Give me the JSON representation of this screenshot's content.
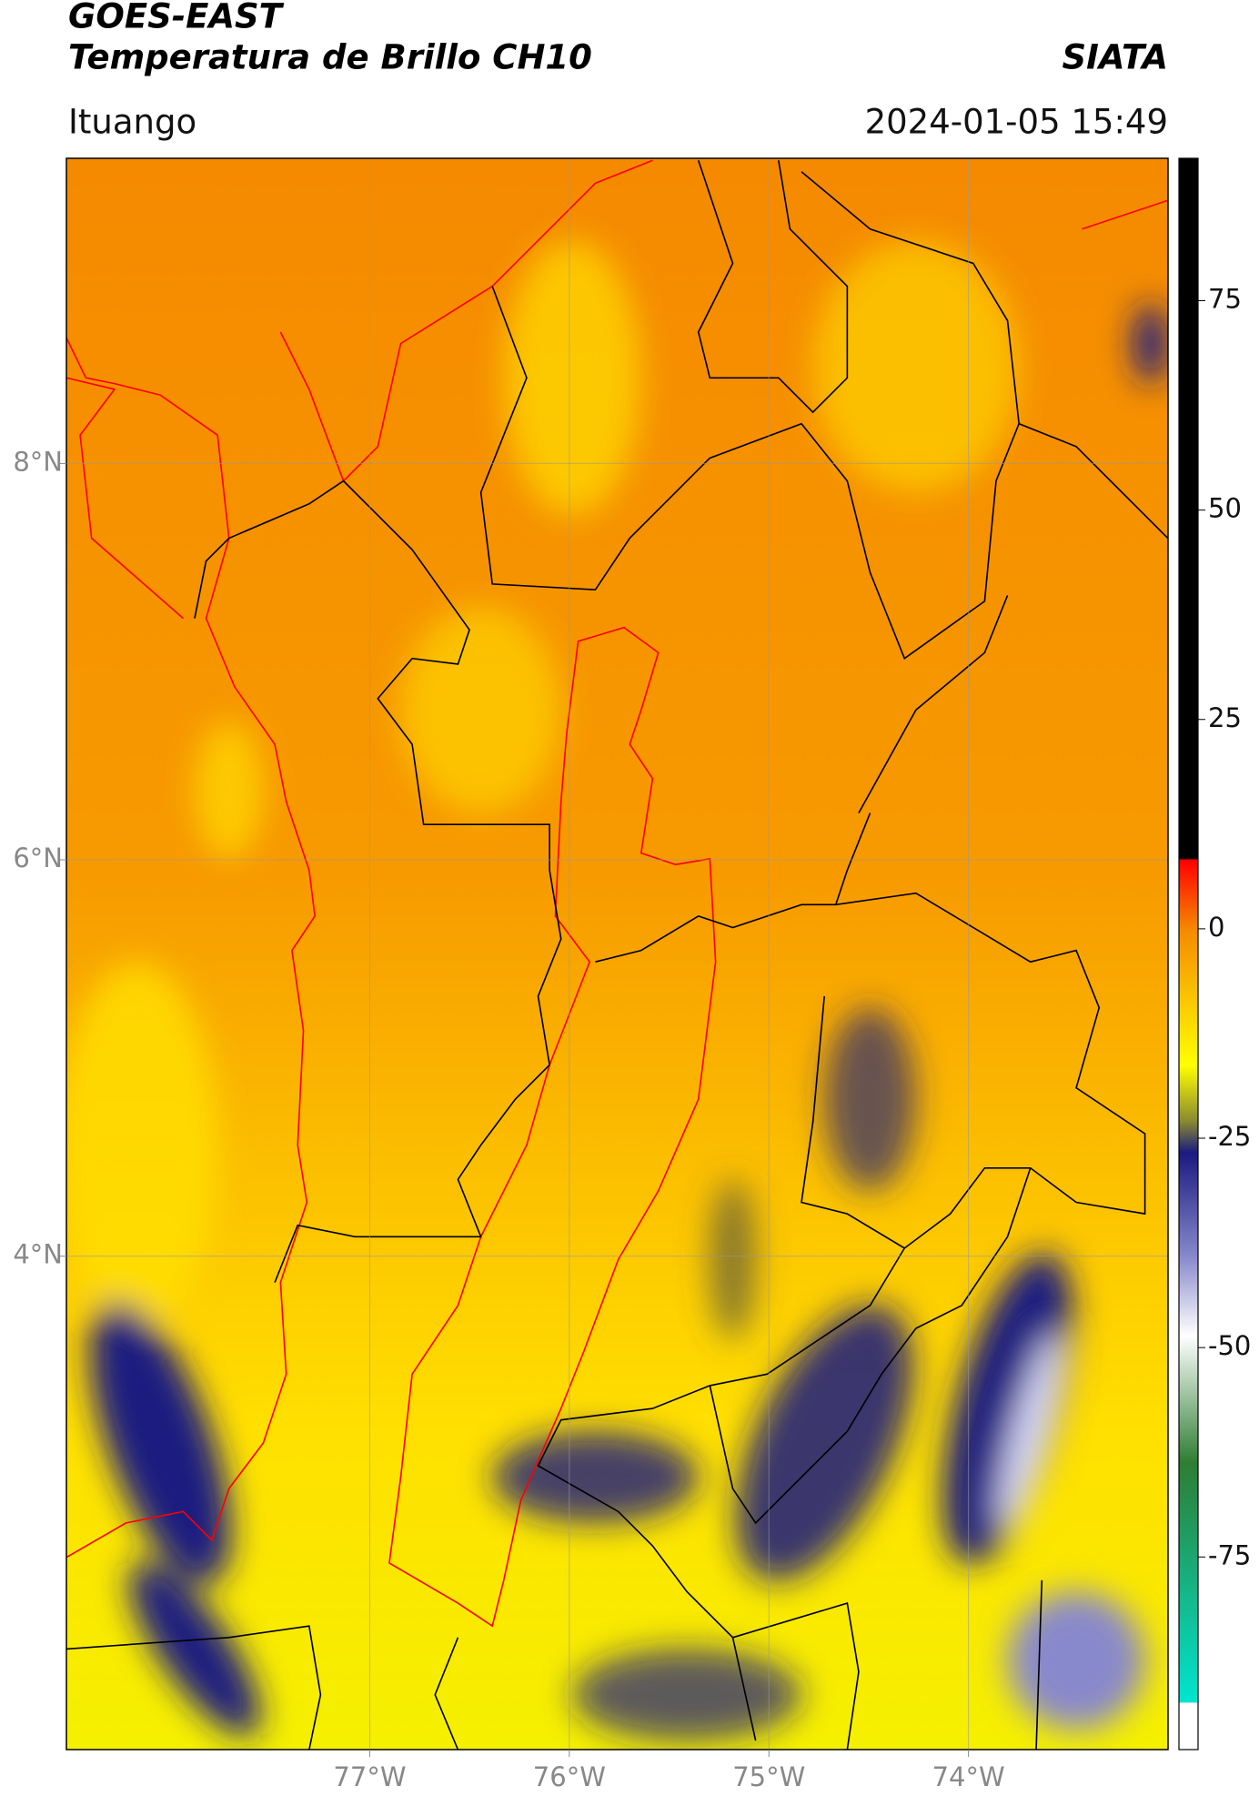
{
  "header": {
    "title": "GOES-EAST",
    "subtitle": "Temperatura de Brillo CH10",
    "source": "SIATA",
    "location": "Ituango",
    "datetime": "2024-01-05 15:49"
  },
  "map": {
    "xlim": [
      -78.52,
      -73.0
    ],
    "ylim": [
      1.51,
      9.54
    ],
    "xticks": [
      {
        "value": -77,
        "label": "77°W"
      },
      {
        "value": -76,
        "label": "76°W"
      },
      {
        "value": -75,
        "label": "75°W"
      },
      {
        "value": -74,
        "label": "74°W"
      }
    ],
    "yticks": [
      {
        "value": 8,
        "label": "8°N"
      },
      {
        "value": 6,
        "label": "6°N"
      },
      {
        "value": 4,
        "label": "4°N"
      }
    ],
    "grid": true
  },
  "colorbar": {
    "lim": [
      -98,
      92
    ],
    "ticks": [
      75,
      50,
      25,
      0,
      -25,
      -50,
      -75
    ]
  }
}
